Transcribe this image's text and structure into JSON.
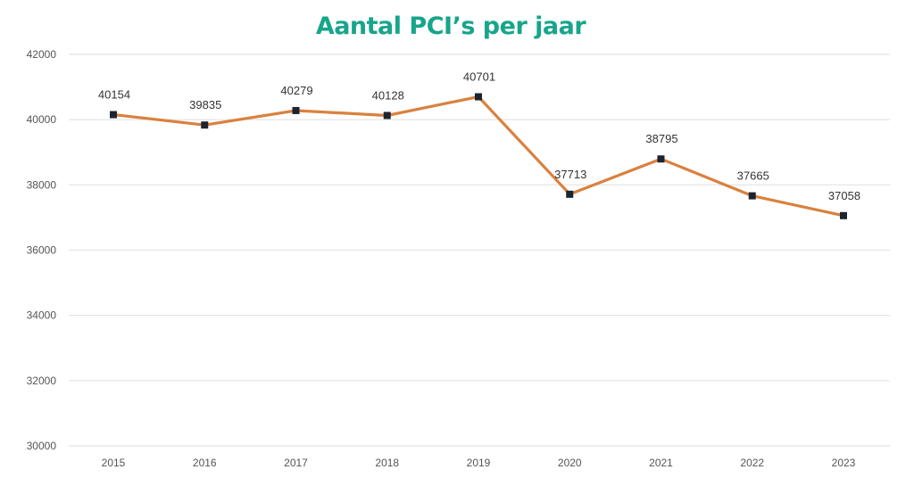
{
  "colors": {
    "title": "#17A58B",
    "line": "#D9813F",
    "marker": "#1C2430",
    "grid": "#E3E3E3"
  },
  "chart_data": {
    "type": "line",
    "title": "Aantal PCI’s per jaar",
    "xlabel": "",
    "ylabel": "",
    "categories": [
      "2015",
      "2016",
      "2017",
      "2018",
      "2019",
      "2020",
      "2021",
      "2022",
      "2023"
    ],
    "series": [
      {
        "name": "Aantal PCI’s",
        "values": [
          40154,
          39835,
          40279,
          40128,
          40701,
          37713,
          38795,
          37665,
          37058
        ]
      }
    ],
    "data_labels": [
      "40154",
      "39835",
      "40279",
      "40128",
      "40701",
      "37713",
      "38795",
      "37665",
      "37058"
    ],
    "ylim": [
      30000,
      42000
    ],
    "yticks": [
      30000,
      32000,
      34000,
      36000,
      38000,
      40000,
      42000
    ],
    "ytick_labels": [
      "30000",
      "32000",
      "34000",
      "36000",
      "38000",
      "40000",
      "42000"
    ],
    "grid": true,
    "legend": "none"
  }
}
